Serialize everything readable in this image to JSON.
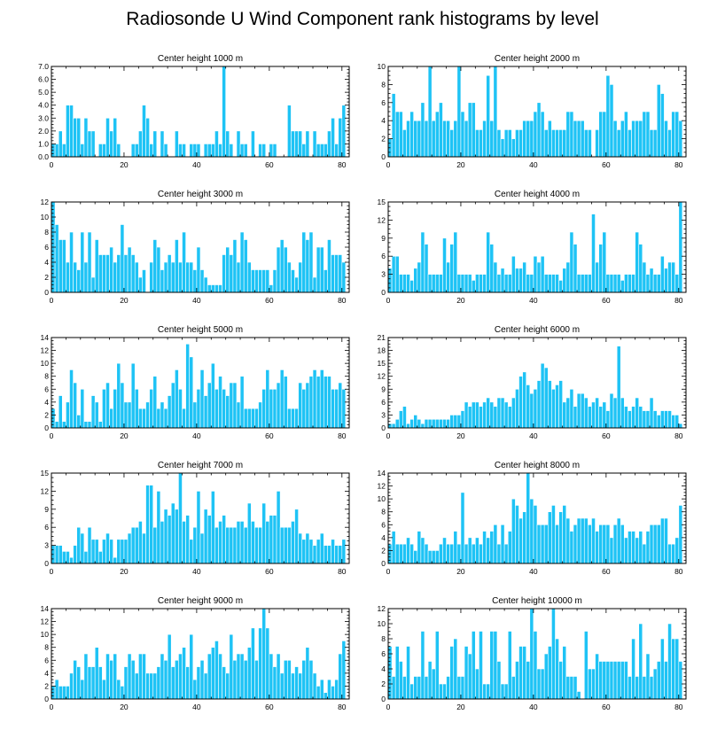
{
  "figure": {
    "title": "Radiosonde U Wind Component rank histograms by level"
  },
  "chart_data": [
    {
      "type": "bar",
      "title": "Center height 1000 m",
      "xlim": [
        0,
        82
      ],
      "ylim": [
        0,
        7
      ],
      "xticks": [
        "0",
        "20",
        "40",
        "60",
        "80"
      ],
      "yticks": [
        "0.0",
        "1.0",
        "2.0",
        "3.0",
        "4.0",
        "5.0",
        "6.0",
        "7.0"
      ],
      "values": [
        1,
        1,
        2,
        1,
        4,
        4,
        3,
        3,
        1,
        3,
        2,
        2,
        0,
        1,
        1,
        3,
        2,
        3,
        1,
        0,
        0,
        0,
        1,
        1,
        2,
        4,
        3,
        1,
        2,
        0,
        2,
        1,
        0,
        0,
        2,
        1,
        1,
        0,
        1,
        1,
        1,
        0,
        1,
        1,
        1,
        2,
        1,
        7,
        2,
        1,
        0,
        2,
        1,
        1,
        0,
        2,
        0,
        1,
        1,
        0,
        1,
        1,
        0,
        0,
        0,
        4,
        2,
        2,
        2,
        1,
        2,
        0,
        2,
        1,
        1,
        1,
        2,
        3,
        1,
        3,
        4
      ]
    },
    {
      "type": "bar",
      "title": "Center height 2000 m",
      "xlim": [
        0,
        82
      ],
      "ylim": [
        0,
        10
      ],
      "xticks": [
        "0",
        "20",
        "40",
        "60",
        "80"
      ],
      "yticks": [
        "0",
        "2",
        "4",
        "6",
        "8",
        "10"
      ],
      "values": [
        2,
        7,
        5,
        5,
        3,
        4,
        5,
        4,
        4,
        6,
        4,
        10,
        4,
        5,
        6,
        4,
        4,
        3,
        4,
        10,
        5,
        4,
        6,
        6,
        3,
        3,
        4,
        9,
        4,
        10,
        3,
        2,
        3,
        3,
        2,
        3,
        3,
        4,
        4,
        4,
        5,
        6,
        5,
        3,
        4,
        3,
        3,
        3,
        3,
        5,
        5,
        4,
        4,
        4,
        3,
        3,
        0,
        3,
        5,
        5,
        9,
        8,
        4,
        3,
        4,
        5,
        3,
        4,
        4,
        4,
        5,
        5,
        3,
        3,
        8,
        7,
        4,
        3,
        5,
        5,
        4
      ]
    },
    {
      "type": "bar",
      "title": "Center height 3000 m",
      "xlim": [
        0,
        82
      ],
      "ylim": [
        0,
        12
      ],
      "xticks": [
        "0",
        "20",
        "40",
        "60",
        "80"
      ],
      "yticks": [
        "0",
        "2",
        "4",
        "6",
        "8",
        "10",
        "12"
      ],
      "values": [
        12,
        9,
        7,
        7,
        4,
        8,
        4,
        3,
        8,
        4,
        8,
        2,
        7,
        5,
        5,
        5,
        6,
        4,
        5,
        9,
        5,
        6,
        5,
        4,
        2,
        3,
        0,
        4,
        7,
        6,
        3,
        4,
        5,
        4,
        7,
        4,
        8,
        4,
        4,
        3,
        6,
        3,
        2,
        1,
        1,
        1,
        1,
        5,
        6,
        5,
        7,
        4,
        8,
        7,
        4,
        3,
        3,
        3,
        3,
        3,
        1,
        3,
        6,
        7,
        6,
        4,
        3,
        2,
        4,
        8,
        7,
        8,
        2,
        6,
        6,
        3,
        7,
        5,
        5,
        5,
        4
      ]
    },
    {
      "type": "bar",
      "title": "Center height 4000 m",
      "xlim": [
        0,
        82
      ],
      "ylim": [
        0,
        15
      ],
      "xticks": [
        "0",
        "20",
        "40",
        "60",
        "80"
      ],
      "yticks": [
        "0",
        "3",
        "6",
        "9",
        "12",
        "15"
      ],
      "values": [
        4,
        6,
        6,
        3,
        3,
        3,
        2,
        4,
        5,
        10,
        8,
        3,
        3,
        3,
        3,
        9,
        5,
        8,
        10,
        3,
        3,
        3,
        3,
        2,
        3,
        3,
        3,
        10,
        8,
        5,
        3,
        4,
        3,
        3,
        6,
        4,
        4,
        5,
        3,
        3,
        6,
        5,
        6,
        3,
        3,
        3,
        3,
        2,
        4,
        5,
        10,
        8,
        3,
        3,
        3,
        3,
        13,
        5,
        8,
        10,
        3,
        3,
        3,
        3,
        2,
        3,
        3,
        3,
        10,
        8,
        5,
        3,
        4,
        3,
        3,
        6,
        4,
        5,
        5,
        3,
        15
      ]
    },
    {
      "type": "bar",
      "title": "Center height 5000 m",
      "xlim": [
        0,
        82
      ],
      "ylim": [
        0,
        14
      ],
      "xticks": [
        "0",
        "20",
        "40",
        "60",
        "80"
      ],
      "yticks": [
        "0",
        "2",
        "4",
        "6",
        "8",
        "10",
        "12",
        "14"
      ],
      "values": [
        3,
        1,
        5,
        1,
        4,
        9,
        7,
        2,
        6,
        1,
        1,
        5,
        4,
        1,
        6,
        7,
        3,
        6,
        10,
        7,
        4,
        4,
        10,
        6,
        3,
        3,
        4,
        6,
        8,
        3,
        4,
        3,
        5,
        7,
        9,
        6,
        3,
        13,
        11,
        4,
        6,
        9,
        5,
        7,
        10,
        6,
        8,
        6,
        5,
        7,
        7,
        4,
        8,
        3,
        3,
        3,
        3,
        4,
        6,
        9,
        6,
        6,
        7,
        9,
        8,
        3,
        3,
        3,
        7,
        6,
        7,
        8,
        9,
        8,
        9,
        8,
        8,
        6,
        6,
        7,
        6
      ]
    },
    {
      "type": "bar",
      "title": "Center height 6000 m",
      "xlim": [
        0,
        82
      ],
      "ylim": [
        0,
        21
      ],
      "xticks": [
        "0",
        "20",
        "40",
        "60",
        "80"
      ],
      "yticks": [
        "0",
        "3",
        "6",
        "9",
        "12",
        "15",
        "18",
        "21"
      ],
      "values": [
        1,
        1,
        2,
        4,
        5,
        1,
        2,
        3,
        2,
        1,
        2,
        2,
        2,
        2,
        2,
        2,
        2,
        3,
        3,
        3,
        4,
        6,
        5,
        6,
        6,
        5,
        6,
        7,
        6,
        5,
        7,
        7,
        6,
        5,
        7,
        9,
        12,
        13,
        10,
        8,
        9,
        11,
        15,
        14,
        11,
        9,
        10,
        11,
        6,
        7,
        9,
        5,
        8,
        8,
        7,
        5,
        6,
        7,
        5,
        6,
        4,
        8,
        7,
        19,
        7,
        5,
        4,
        5,
        7,
        5,
        4,
        4,
        7,
        4,
        3,
        4,
        4,
        4,
        3,
        3,
        1
      ]
    },
    {
      "type": "bar",
      "title": "Center height 7000 m",
      "xlim": [
        0,
        82
      ],
      "ylim": [
        0,
        15
      ],
      "xticks": [
        "0",
        "20",
        "40",
        "60",
        "80"
      ],
      "yticks": [
        "0",
        "3",
        "6",
        "9",
        "12",
        "15"
      ],
      "values": [
        3,
        3,
        3,
        2,
        2,
        1,
        3,
        6,
        5,
        2,
        6,
        4,
        4,
        2,
        4,
        5,
        4,
        1,
        4,
        4,
        4,
        5,
        6,
        6,
        7,
        5,
        13,
        13,
        6,
        12,
        7,
        9,
        8,
        10,
        9,
        15,
        7,
        8,
        4,
        6,
        12,
        5,
        9,
        8,
        12,
        6,
        7,
        8,
        6,
        6,
        6,
        7,
        7,
        6,
        10,
        7,
        6,
        6,
        10,
        7,
        8,
        8,
        12,
        6,
        6,
        6,
        7,
        9,
        5,
        4,
        5,
        4,
        3,
        4,
        5,
        3,
        3,
        4,
        3,
        3,
        4
      ]
    },
    {
      "type": "bar",
      "title": "Center height 8000 m",
      "xlim": [
        0,
        82
      ],
      "ylim": [
        0,
        14
      ],
      "xticks": [
        "0",
        "20",
        "40",
        "60",
        "80"
      ],
      "yticks": [
        "0",
        "2",
        "4",
        "6",
        "8",
        "10",
        "12",
        "14"
      ],
      "values": [
        3,
        5,
        3,
        3,
        3,
        4,
        3,
        2,
        5,
        4,
        3,
        2,
        2,
        2,
        3,
        4,
        3,
        3,
        5,
        3,
        11,
        3,
        4,
        3,
        4,
        3,
        5,
        4,
        5,
        6,
        3,
        6,
        3,
        5,
        10,
        9,
        7,
        8,
        14,
        10,
        9,
        6,
        6,
        6,
        8,
        9,
        6,
        8,
        9,
        7,
        5,
        6,
        7,
        7,
        7,
        6,
        7,
        5,
        6,
        6,
        6,
        4,
        6,
        7,
        6,
        4,
        5,
        5,
        4,
        5,
        3,
        5,
        6,
        6,
        6,
        7,
        7,
        3,
        3,
        4,
        9
      ]
    },
    {
      "type": "bar",
      "title": "Center height 9000 m",
      "xlim": [
        0,
        82
      ],
      "ylim": [
        0,
        14
      ],
      "xticks": [
        "0",
        "20",
        "40",
        "60",
        "80"
      ],
      "yticks": [
        "0",
        "2",
        "4",
        "6",
        "8",
        "10",
        "12",
        "14"
      ],
      "values": [
        2,
        3,
        2,
        2,
        2,
        4,
        6,
        5,
        3,
        7,
        5,
        5,
        8,
        5,
        3,
        7,
        6,
        7,
        3,
        2,
        5,
        7,
        6,
        4,
        7,
        7,
        4,
        4,
        4,
        5,
        7,
        6,
        10,
        5,
        6,
        7,
        8,
        5,
        10,
        3,
        5,
        6,
        4,
        7,
        8,
        9,
        7,
        5,
        4,
        10,
        6,
        7,
        7,
        6,
        8,
        11,
        6,
        11,
        14,
        11,
        7,
        5,
        7,
        4,
        6,
        6,
        4,
        5,
        4,
        6,
        8,
        6,
        4,
        2,
        3,
        1,
        3,
        2,
        3,
        7,
        9
      ]
    },
    {
      "type": "bar",
      "title": "Center height 10000 m",
      "xlim": [
        0,
        82
      ],
      "ylim": [
        0,
        12
      ],
      "xticks": [
        "0",
        "20",
        "40",
        "60",
        "80"
      ],
      "yticks": [
        "0",
        "2",
        "4",
        "6",
        "8",
        "10",
        "12"
      ],
      "values": [
        7,
        3,
        7,
        5,
        3,
        7,
        2,
        3,
        3,
        9,
        3,
        5,
        4,
        9,
        2,
        2,
        3,
        7,
        8,
        3,
        3,
        7,
        6,
        9,
        4,
        9,
        2,
        2,
        9,
        9,
        5,
        2,
        2,
        9,
        3,
        5,
        7,
        7,
        5,
        12,
        9,
        4,
        4,
        6,
        7,
        12,
        8,
        5,
        7,
        3,
        3,
        3,
        1,
        0,
        9,
        4,
        4,
        6,
        5,
        5,
        5,
        5,
        5,
        5,
        5,
        5,
        3,
        8,
        3,
        10,
        3,
        6,
        3,
        4,
        5,
        8,
        5,
        10,
        8,
        8,
        5
      ]
    }
  ]
}
